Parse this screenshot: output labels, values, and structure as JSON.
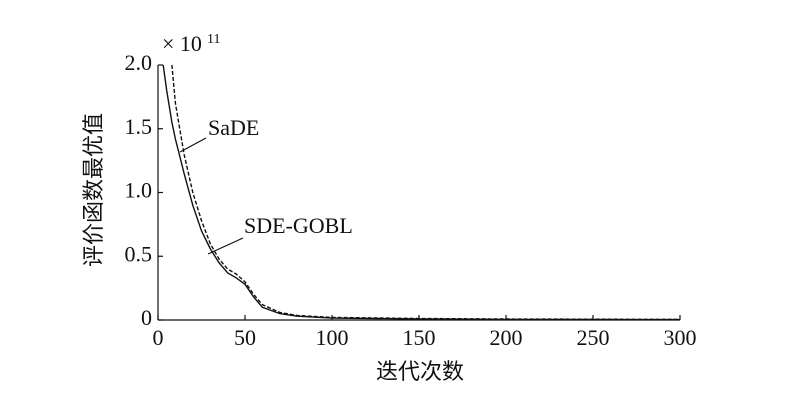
{
  "chart_data": {
    "type": "line",
    "x_label": "迭代次数",
    "y_label": "评价函数最优值",
    "scale_label": "× 10",
    "scale_exponent": "11",
    "xlim": [
      0,
      300
    ],
    "xticks": [
      0,
      50,
      100,
      150,
      200,
      250,
      300
    ],
    "ylim": [
      0,
      2
    ],
    "yticks": [
      0,
      0.5,
      {
        "value": 1,
        "label": "1.0"
      },
      1.5,
      {
        "value": 2,
        "label": "2.0"
      }
    ],
    "series": [
      {
        "name": "SaDE",
        "color": "#111111",
        "dash": true,
        "x": [
          8,
          10,
          15,
          20,
          25,
          30,
          35,
          40,
          45,
          50,
          55,
          60,
          70,
          80,
          100,
          150,
          200,
          250,
          300
        ],
        "values": [
          2.0,
          1.7,
          1.3,
          1.0,
          0.78,
          0.6,
          0.48,
          0.4,
          0.36,
          0.3,
          0.2,
          0.12,
          0.06,
          0.035,
          0.02,
          0.012,
          0.008,
          0.006,
          0.005
        ]
      },
      {
        "name": "SDE-GOBL",
        "color": "#111111",
        "dash": false,
        "x": [
          3,
          5,
          8,
          10,
          15,
          20,
          25,
          30,
          35,
          40,
          45,
          50,
          55,
          60,
          70,
          80,
          100,
          150,
          200,
          250,
          300
        ],
        "values": [
          2.0,
          1.8,
          1.55,
          1.42,
          1.15,
          0.9,
          0.7,
          0.56,
          0.45,
          0.37,
          0.33,
          0.28,
          0.18,
          0.1,
          0.05,
          0.03,
          0.015,
          0.008,
          0.005,
          0.004,
          0.003
        ]
      }
    ]
  }
}
